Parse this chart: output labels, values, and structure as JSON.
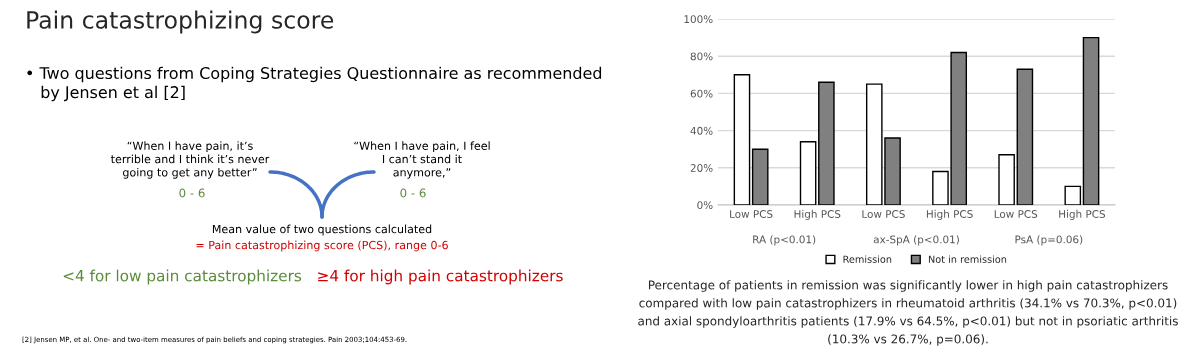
{
  "chart_data": [
    {
      "type": "other",
      "title": "Pain catastrophizing score",
      "annotations": [
        "• Two questions from Coping Strategies Questionnaire as recommended\n   by Jensen et al [2]",
        "“When I have pain, it’s\nterrible and I think it’s never\ngoing to get any better”",
        "“When I have pain, I feel\nI can’t stand it\nanymore,”",
        "0 - 6",
        "0 - 6",
        "Mean value of two questions calculated",
        "= Pain catastrophizing score (PCS), range 0-6",
        "<4 for low pain catastrophizers",
        "≥4 for high pain catastrophizers",
        "[2] Jensen MP, et al. One- and two-item measures of pain beliefs and coping strategies. Pain 2003;104:453-69."
      ]
    },
    {
      "type": "bar",
      "categories": [
        "Low PCS",
        "High PCS",
        "Low PCS",
        "High PCS",
        "Low PCS",
        "High PCS"
      ],
      "series": [
        {
          "name": "Remission",
          "color": "#ffffff",
          "values": [
            70,
            34,
            65,
            18,
            27,
            10
          ]
        },
        {
          "name": "Not in remission",
          "color": "#808080",
          "values": [
            30,
            66,
            36,
            82,
            73,
            90
          ]
        }
      ],
      "ylim": [
        0,
        100
      ],
      "yticks": [
        {
          "value": 0,
          "label": "0%"
        },
        {
          "value": 20,
          "label": "20%"
        },
        {
          "value": 40,
          "label": "40%"
        },
        {
          "value": 60,
          "label": "60%"
        },
        {
          "value": 80,
          "label": "80%"
        },
        {
          "value": 100,
          "label": "100%"
        }
      ],
      "grid": "y",
      "legend": "bottom",
      "annotations": [
        "RA (p<0.01)",
        "ax-SpA (p<0.01)",
        "PsA (p=0.06)",
        "Percentage of patients in remission was significantly lower in high pain catastrophizers",
        "compared with low pain catastrophizers in rheumatoid arthritis (34.1% vs 70.3%, p<0.01)",
        "and axial spondyloarthritis patients (17.9% vs 64.5%, p<0.01) but not in psoriatic arthritis",
        "(10.3% vs 26.7%, p=0.06)."
      ]
    }
  ]
}
